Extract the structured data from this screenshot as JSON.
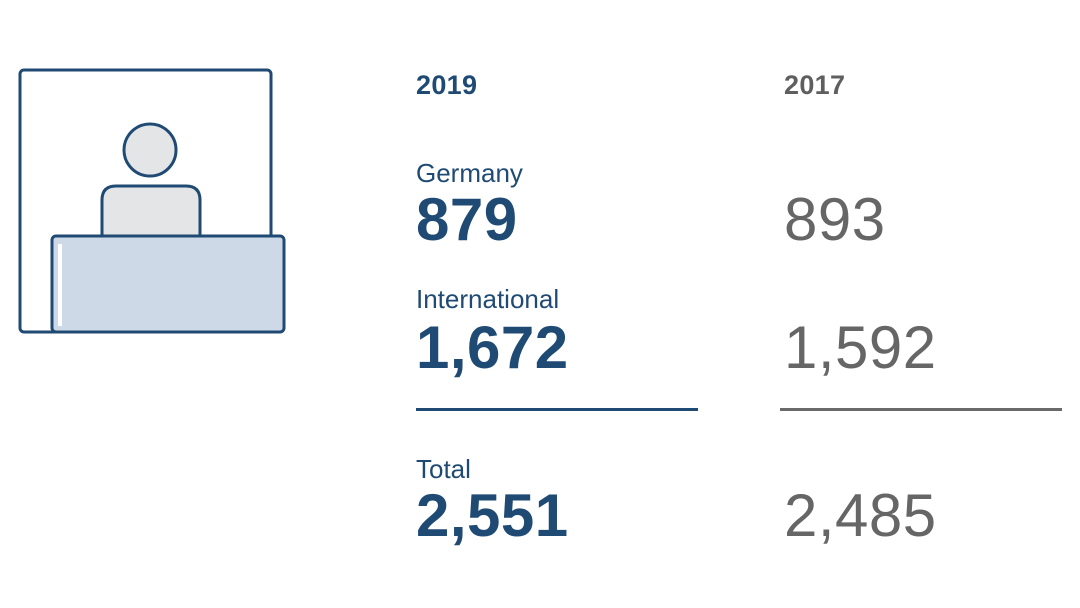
{
  "columns": [
    {
      "year": "2019",
      "germany_label": "Germany",
      "germany_value": "879",
      "international_label": "International",
      "international_value": "1,672",
      "total_label": "Total",
      "total_value": "2,551"
    },
    {
      "year": "2017",
      "germany_value": "893",
      "international_value": "1,592",
      "total_value": "2,485"
    }
  ],
  "colors": {
    "primary": "#1f4a73",
    "secondary": "#666666",
    "icon_fill": "#cdd9e6",
    "icon_head": "#e3e5e7"
  },
  "icon": "person-at-desk-icon"
}
